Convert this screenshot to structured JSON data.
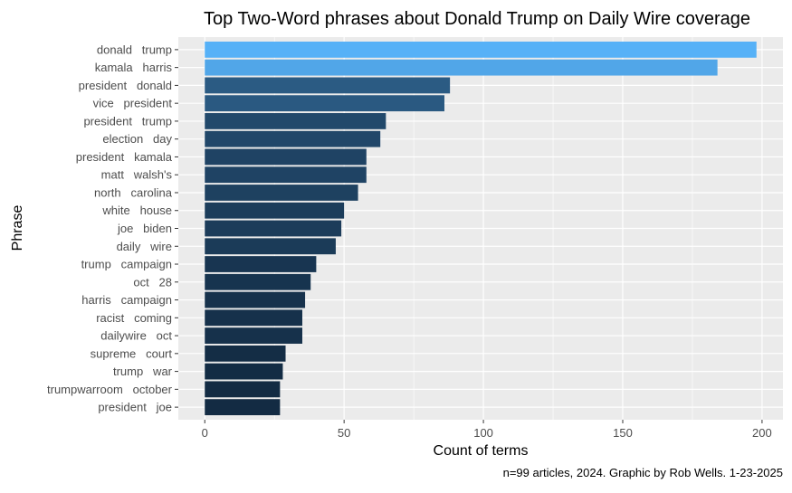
{
  "chart_data": {
    "type": "bar",
    "orientation": "horizontal",
    "title": "Top Two-Word phrases about Donald Trump on Daily Wire coverage",
    "xlabel": "Count of terms",
    "ylabel": "Phrase",
    "caption": "n=99 articles, 2024. Graphic by Rob Wells. 1-23-2025",
    "xlim": [
      0,
      205
    ],
    "x_ticks": [
      0,
      50,
      100,
      150,
      200
    ],
    "grid": true,
    "legend": "none",
    "fill_scale": {
      "low": "#132b43",
      "high": "#56b1f7"
    },
    "categories": [
      "donald   trump",
      "kamala   harris",
      "president   donald",
      "vice   president",
      "president   trump",
      "election   day",
      "president   kamala",
      "matt   walsh's",
      "north   carolina",
      "white   house",
      "joe   biden",
      "daily   wire",
      "trump   campaign",
      "oct   28",
      "harris   campaign",
      "racist   coming",
      "dailywire   oct",
      "supreme   court",
      "trump   war",
      "trumpwarroom   october",
      "president   joe"
    ],
    "values": [
      198,
      184,
      88,
      86,
      65,
      63,
      58,
      58,
      55,
      50,
      49,
      47,
      40,
      38,
      36,
      35,
      35,
      29,
      28,
      27,
      27
    ]
  }
}
